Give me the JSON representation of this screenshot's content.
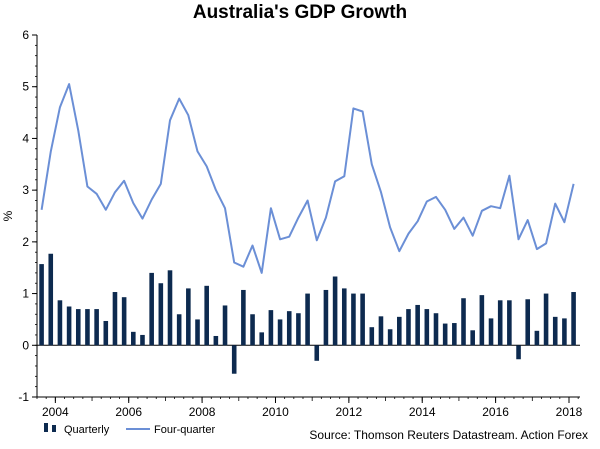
{
  "chart_data": {
    "type": "bar+line",
    "title": "Australia's GDP Growth",
    "ylabel": "%",
    "ylim": [
      -1,
      6
    ],
    "yticks": [
      -1,
      0,
      1,
      2,
      3,
      4,
      5,
      6
    ],
    "xlabels": [
      "2004",
      "2006",
      "2008",
      "2010",
      "2012",
      "2014",
      "2016",
      "2018"
    ],
    "x_range": [
      2003.5,
      2018.3
    ],
    "x_start": 2003.625,
    "x_step": 0.25,
    "series": [
      {
        "name": "Quarterly",
        "type": "bar",
        "color": "#0d2a4f",
        "values": [
          1.57,
          1.77,
          0.87,
          0.75,
          0.7,
          0.7,
          0.7,
          0.47,
          1.03,
          0.93,
          0.26,
          0.2,
          1.4,
          1.2,
          1.45,
          0.6,
          1.1,
          0.5,
          1.15,
          0.18,
          0.77,
          -0.55,
          1.07,
          0.6,
          0.25,
          0.68,
          0.5,
          0.66,
          0.62,
          1.0,
          -0.3,
          1.07,
          1.33,
          1.1,
          1.0,
          1.0,
          0.35,
          0.56,
          0.31,
          0.55,
          0.7,
          0.78,
          0.7,
          0.62,
          0.42,
          0.43,
          0.91,
          0.29,
          0.97,
          0.52,
          0.87,
          0.87,
          -0.27,
          0.89,
          0.28,
          1.0,
          0.55,
          0.52,
          1.03
        ]
      },
      {
        "name": "Four-quarter",
        "type": "line",
        "color": "#6b8fd6",
        "values": [
          2.62,
          3.75,
          4.6,
          5.05,
          4.15,
          3.07,
          2.93,
          2.62,
          2.96,
          3.18,
          2.75,
          2.45,
          2.82,
          3.12,
          4.35,
          4.77,
          4.45,
          3.75,
          3.46,
          3.0,
          2.65,
          1.6,
          1.52,
          1.93,
          1.4,
          2.65,
          2.05,
          2.1,
          2.47,
          2.8,
          2.03,
          2.47,
          3.17,
          3.27,
          4.58,
          4.52,
          3.5,
          2.96,
          2.28,
          1.82,
          2.16,
          2.4,
          2.78,
          2.87,
          2.62,
          2.25,
          2.47,
          2.12,
          2.6,
          2.69,
          2.65,
          3.28,
          2.05,
          2.42,
          1.86,
          1.97,
          2.74,
          2.38,
          3.12
        ]
      }
    ],
    "source": "Source: Thomson Reuters Datastream. Action Forex"
  }
}
